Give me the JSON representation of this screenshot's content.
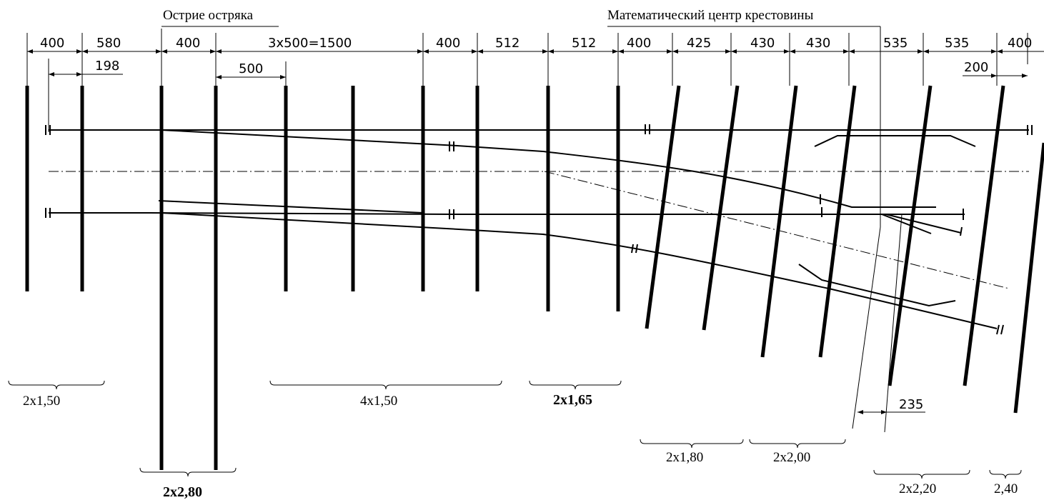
{
  "annotations": {
    "point_of_switch": "Острие остряка",
    "crossing_center": "Математический центр крестовины"
  },
  "dimensions_top": [
    "400",
    "580",
    "400",
    "3x500=1500",
    "400",
    "512",
    "512",
    "400",
    "425",
    "430",
    "430",
    "535",
    "535",
    "400"
  ],
  "dimensions_secondary": {
    "d198": "198",
    "d500": "500",
    "d200": "200",
    "d235": "235"
  },
  "tie_groups": {
    "g1": "2x1,50",
    "g2": "2x2,80",
    "g3": "4x1,50",
    "g4": "2x1,65",
    "g5": "2x1,80",
    "g6": "2x2,00",
    "g7": "2x2,20",
    "g8": "2,40"
  }
}
